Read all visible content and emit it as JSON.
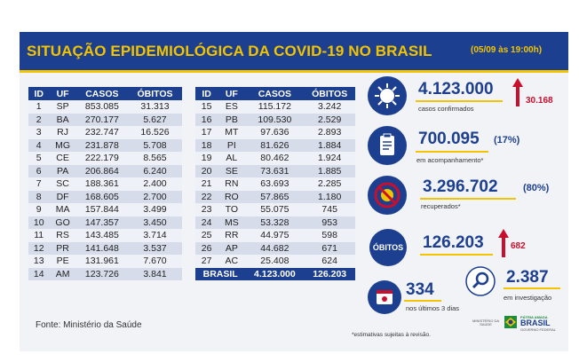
{
  "header": {
    "title": "SITUAÇÃO EPIDEMIOLÓGICA DA COVID-19 NO BRASIL",
    "date": "(05/09 às 19:00h)"
  },
  "table": {
    "columns": [
      "ID",
      "UF",
      "CASOS",
      "ÓBITOS"
    ],
    "left_rows": [
      [
        "1",
        "SP",
        "853.085",
        "31.313"
      ],
      [
        "2",
        "BA",
        "270.177",
        "5.627"
      ],
      [
        "3",
        "RJ",
        "232.747",
        "16.526"
      ],
      [
        "4",
        "MG",
        "231.878",
        "5.708"
      ],
      [
        "5",
        "CE",
        "222.179",
        "8.565"
      ],
      [
        "6",
        "PA",
        "206.864",
        "6.240"
      ],
      [
        "7",
        "SC",
        "188.361",
        "2.400"
      ],
      [
        "8",
        "DF",
        "168.605",
        "2.700"
      ],
      [
        "9",
        "MA",
        "157.844",
        "3.499"
      ],
      [
        "10",
        "GO",
        "147.357",
        "3.450"
      ],
      [
        "11",
        "RS",
        "143.485",
        "3.714"
      ],
      [
        "12",
        "PR",
        "141.648",
        "3.537"
      ],
      [
        "13",
        "PE",
        "131.961",
        "7.670"
      ],
      [
        "14",
        "AM",
        "123.726",
        "3.841"
      ]
    ],
    "right_rows": [
      [
        "15",
        "ES",
        "115.172",
        "3.242"
      ],
      [
        "16",
        "PB",
        "109.530",
        "2.529"
      ],
      [
        "17",
        "MT",
        "97.636",
        "2.893"
      ],
      [
        "18",
        "PI",
        "81.626",
        "1.884"
      ],
      [
        "19",
        "AL",
        "80.462",
        "1.924"
      ],
      [
        "20",
        "SE",
        "73.631",
        "1.885"
      ],
      [
        "21",
        "RN",
        "63.693",
        "2.285"
      ],
      [
        "22",
        "RO",
        "57.865",
        "1.180"
      ],
      [
        "23",
        "TO",
        "55.075",
        "745"
      ],
      [
        "24",
        "MS",
        "53.328",
        "953"
      ],
      [
        "25",
        "RR",
        "44.975",
        "598"
      ],
      [
        "26",
        "AP",
        "44.682",
        "671"
      ],
      [
        "27",
        "AC",
        "25.408",
        "624"
      ]
    ],
    "total": {
      "label": "BRASIL",
      "casos": "4.123.000",
      "obitos": "126.203"
    }
  },
  "source": "Fonte: Ministério da Saúde",
  "stats": {
    "confirmed": {
      "value": "4.123.000",
      "label": "casos confirmados",
      "increase": "30.168",
      "icon": "virus-icon"
    },
    "monitoring": {
      "value": "700.095",
      "pct": "(17%)",
      "label": "em acompanhamento*",
      "icon": "clipboard-icon"
    },
    "recovered": {
      "value": "3.296.702",
      "pct": "(80%)",
      "label": "recuperados*",
      "icon": "no-virus-icon"
    },
    "deaths": {
      "badge": "ÓBITOS",
      "value": "126.203",
      "increase": "682"
    },
    "last3days": {
      "value": "334",
      "label": "nos últimos 3 dias",
      "icon": "calendar-icon"
    },
    "investigation": {
      "value": "2.387",
      "label": "em investigação",
      "icon": "magnifier-icon"
    }
  },
  "note": "*estimativas sujeitas à revisão.",
  "logos": {
    "ministry": "MINISTÉRIO DA SAÚDE",
    "brasil_top": "PÁTRIA AMADA",
    "brasil": "BRASIL",
    "brasil_sub": "GOVERNO FEDERAL"
  },
  "colors": {
    "navy": "#1d3f8f",
    "yellow": "#f2c400",
    "red": "#c8102e"
  }
}
